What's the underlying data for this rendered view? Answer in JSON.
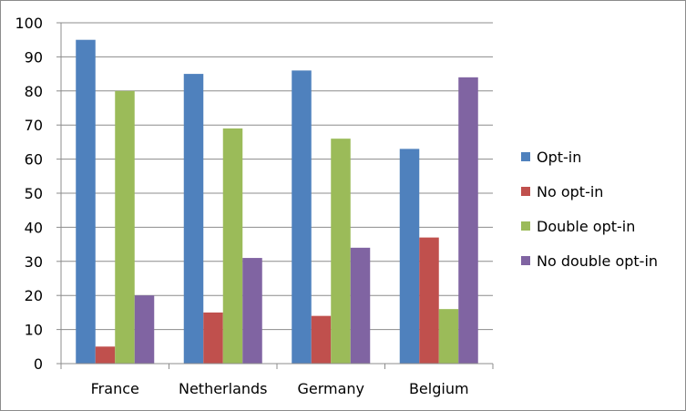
{
  "chart_data": {
    "type": "bar",
    "categories": [
      "France",
      "Netherlands",
      "Germany",
      "Belgium"
    ],
    "series": [
      {
        "name": "Opt-in",
        "color": "#4F81BD",
        "values": [
          95,
          85,
          86,
          63
        ]
      },
      {
        "name": "No opt-in",
        "color": "#C0504D",
        "values": [
          5,
          15,
          14,
          37
        ]
      },
      {
        "name": "Double opt-in",
        "color": "#9BBB59",
        "values": [
          80,
          69,
          66,
          16
        ]
      },
      {
        "name": "No double opt-in",
        "color": "#8064A2",
        "values": [
          20,
          31,
          34,
          84
        ]
      }
    ],
    "y_ticks": [
      "0",
      "10",
      "20",
      "30",
      "40",
      "50",
      "60",
      "70",
      "80",
      "90",
      "100"
    ],
    "ylim": [
      0,
      100
    ],
    "title": "",
    "xlabel": "",
    "ylabel": "",
    "grid": true,
    "legend_position": "right"
  }
}
